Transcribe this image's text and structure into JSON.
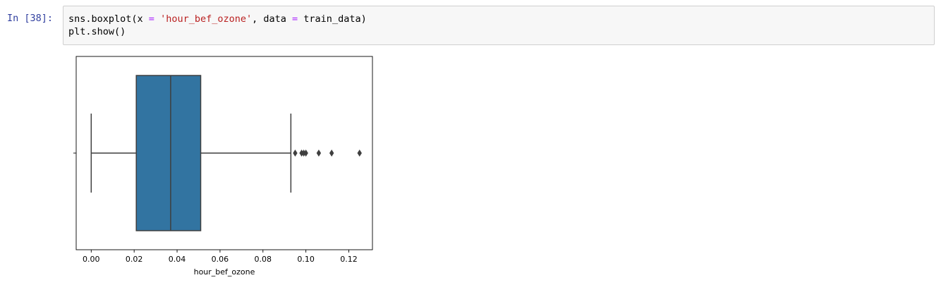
{
  "cell": {
    "prompt": "In [38]:",
    "code_line1": {
      "p1": "sns.boxplot(x ",
      "op1": "=",
      "p2": " ",
      "str1": "'hour_bef_ozone'",
      "p3": ", data ",
      "op2": "=",
      "p4": " train_data)"
    },
    "code_line2": "plt.show()"
  },
  "chart_data": {
    "type": "box",
    "orientation": "horizontal",
    "xlabel": "hour_bef_ozone",
    "ylabel": "",
    "xlim": [
      -0.007,
      0.131
    ],
    "xticks": [
      0.0,
      0.02,
      0.04,
      0.06,
      0.08,
      0.1,
      0.12
    ],
    "xtick_labels": [
      "0.00",
      "0.02",
      "0.04",
      "0.06",
      "0.08",
      "0.10",
      "0.12"
    ],
    "box_color": "#3274a1",
    "line_color": "#3f3f3f",
    "whisker_low": 0.0,
    "q1": 0.021,
    "median": 0.037,
    "q3": 0.051,
    "whisker_high": 0.093,
    "outliers": [
      0.095,
      0.098,
      0.099,
      0.1,
      0.106,
      0.112,
      0.125
    ]
  }
}
